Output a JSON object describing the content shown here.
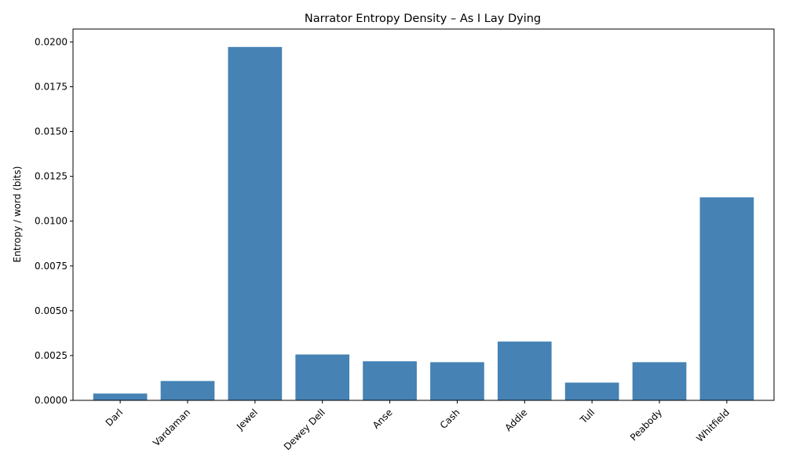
{
  "chart_data": {
    "type": "bar",
    "title": "Narrator Entropy Density – As I Lay Dying",
    "xlabel": "",
    "ylabel": "Entropy / word (bits)",
    "categories": [
      "Darl",
      "Vardaman",
      "Jewel",
      "Dewey Dell",
      "Anse",
      "Cash",
      "Addie",
      "Tull",
      "Peabody",
      "Whitfield"
    ],
    "values": [
      0.00038,
      0.00108,
      0.01972,
      0.00256,
      0.00218,
      0.00213,
      0.00328,
      0.00099,
      0.00213,
      0.01133
    ],
    "ylim": [
      0,
      0.02072
    ],
    "yticks": [
      0,
      0.0025,
      0.005,
      0.0075,
      0.01,
      0.0125,
      0.015,
      0.0175,
      0.02
    ],
    "ytick_labels": [
      "0.0000",
      "0.0025",
      "0.0050",
      "0.0075",
      "0.0100",
      "0.0125",
      "0.0150",
      "0.0175",
      "0.0200"
    ],
    "bar_color": "#4682b4",
    "grid": false,
    "legend": null
  }
}
